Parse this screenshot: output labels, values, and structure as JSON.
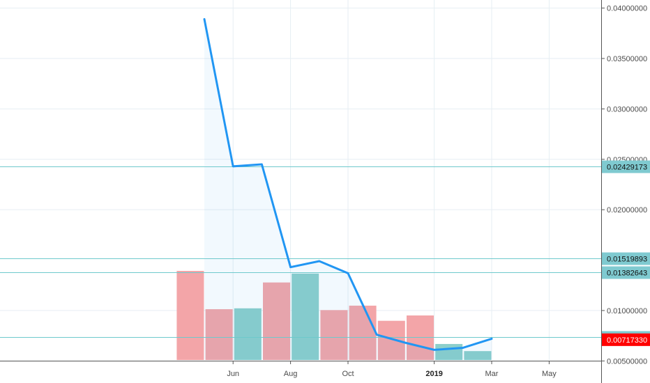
{
  "chart_data": {
    "type": "line",
    "title": "",
    "xlabel": "",
    "ylabel": "",
    "ylim": [
      0.0044,
      0.0408
    ],
    "y_ticks": [
      "0.04000000",
      "0.03500000",
      "0.03000000",
      "0.02500000",
      "0.02000000",
      "0.01000000",
      "0.00500000"
    ],
    "x_ticks": [
      {
        "label": "Jun",
        "month_index": 1.0
      },
      {
        "label": "Aug",
        "month_index": 3.0
      },
      {
        "label": "Oct",
        "month_index": 5.0
      },
      {
        "label": "2019",
        "month_index": 8.0,
        "bold": true
      },
      {
        "label": "Mar",
        "month_index": 10.0
      },
      {
        "label": "May",
        "month_index": 12.0
      }
    ],
    "grid": true,
    "series": [
      {
        "type": "line",
        "color": "#2196f3",
        "x": [
          0,
          1,
          2,
          3,
          4,
          5,
          6,
          7,
          8,
          9,
          10
        ],
        "y": [
          0.0389,
          0.0243,
          0.0245,
          0.0143,
          0.0149,
          0.0137,
          0.0076,
          0.0068,
          0.0061,
          0.0063,
          0.0072
        ]
      }
    ],
    "volume": {
      "x": [
        -0.5,
        0.5,
        1.5,
        2.5,
        3.5,
        4.5,
        5.5,
        6.5,
        7.5,
        8.5,
        9.5
      ],
      "direction": [
        "down",
        "down",
        "up",
        "down",
        "up",
        "down",
        "down",
        "down",
        "down",
        "up",
        "up"
      ],
      "relative": [
        1.0,
        0.57,
        0.58,
        0.87,
        0.97,
        0.56,
        0.61,
        0.44,
        0.5,
        0.18,
        0.1
      ]
    },
    "horizontal_lines": [
      {
        "value": 0.02429173,
        "label": "0.02429173"
      },
      {
        "value": 0.01519893,
        "label": "0.01519893"
      },
      {
        "value": 0.01382643,
        "label": "0.01382643"
      },
      {
        "value": 0.00739284,
        "label": "0.00739284"
      }
    ],
    "last_price": {
      "value": 0.0071733,
      "label": "0.00717330"
    },
    "colors": {
      "line": "#2196f3",
      "area": "#2196f3",
      "volume_up": "#8ccfcb",
      "volume_down": "#f3a5a8",
      "marker_line": "#6ec9cc",
      "marker_bg": "#7fcad0",
      "last_price_bg": "#ff0000",
      "grid": "#e6eef3"
    }
  }
}
